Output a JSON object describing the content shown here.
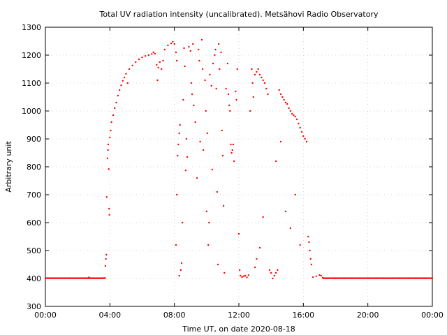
{
  "chart_data": {
    "type": "scatter",
    "title": "Total UV radiation intensity (uncalibrated). Metsähovi Radio Observatory",
    "xlabel": "Time UT, on date 2020-08-18",
    "ylabel": "Arbitrary unit",
    "xlim": [
      0,
      24
    ],
    "ylim": [
      300,
      1300
    ],
    "xticks": [
      {
        "value": 0,
        "label": "00:00"
      },
      {
        "value": 4,
        "label": "04:00"
      },
      {
        "value": 8,
        "label": "08:00"
      },
      {
        "value": 12,
        "label": "12:00"
      },
      {
        "value": 16,
        "label": "16:00"
      },
      {
        "value": 20,
        "label": "20:00"
      },
      {
        "value": 24,
        "label": "00:00"
      }
    ],
    "yticks": [
      300,
      400,
      500,
      600,
      700,
      800,
      900,
      1000,
      1100,
      1200,
      1300
    ],
    "grid": true,
    "marker_color": "#ff0000",
    "series": [
      {
        "points": [
          [
            0.0,
            401
          ],
          [
            0.5,
            401
          ],
          [
            1.0,
            401
          ],
          [
            1.5,
            401
          ],
          [
            2.0,
            401
          ],
          [
            2.5,
            401
          ],
          [
            2.7,
            404
          ],
          [
            3.0,
            401
          ],
          [
            3.5,
            401
          ],
          [
            3.7,
            402
          ],
          [
            3.72,
            445
          ],
          [
            3.75,
            470
          ],
          [
            3.78,
            485
          ],
          [
            3.8,
            692
          ],
          [
            3.85,
            830
          ],
          [
            3.88,
            860
          ],
          [
            3.9,
            880
          ],
          [
            3.93,
            792
          ],
          [
            3.95,
            650
          ],
          [
            3.97,
            628
          ],
          [
            4.0,
            905
          ],
          [
            4.05,
            930
          ],
          [
            4.1,
            960
          ],
          [
            4.2,
            985
          ],
          [
            4.3,
            1010
          ],
          [
            4.4,
            1030
          ],
          [
            4.5,
            1055
          ],
          [
            4.6,
            1075
          ],
          [
            4.7,
            1092
          ],
          [
            4.8,
            1108
          ],
          [
            4.9,
            1120
          ],
          [
            5.0,
            1133
          ],
          [
            5.1,
            1100
          ],
          [
            5.2,
            1150
          ],
          [
            5.4,
            1163
          ],
          [
            5.6,
            1175
          ],
          [
            5.8,
            1185
          ],
          [
            6.0,
            1192
          ],
          [
            6.2,
            1197
          ],
          [
            6.4,
            1200
          ],
          [
            6.6,
            1204
          ],
          [
            6.7,
            1210
          ],
          [
            6.8,
            1205
          ],
          [
            6.9,
            1165
          ],
          [
            6.95,
            1110
          ],
          [
            7.0,
            1155
          ],
          [
            7.1,
            1175
          ],
          [
            7.2,
            1150
          ],
          [
            7.3,
            1180
          ],
          [
            7.4,
            1220
          ],
          [
            7.6,
            1235
          ],
          [
            7.8,
            1242
          ],
          [
            7.9,
            1248
          ],
          [
            8.0,
            1240
          ],
          [
            8.1,
            1210
          ],
          [
            8.15,
            1180
          ],
          [
            8.1,
            520
          ],
          [
            8.15,
            700
          ],
          [
            8.2,
            840
          ],
          [
            8.25,
            880
          ],
          [
            8.3,
            920
          ],
          [
            8.35,
            950
          ],
          [
            8.3,
            410
          ],
          [
            8.4,
            430
          ],
          [
            8.45,
            455
          ],
          [
            8.5,
            600
          ],
          [
            8.55,
            1040
          ],
          [
            8.6,
            1225
          ],
          [
            8.65,
            1160
          ],
          [
            8.7,
            787
          ],
          [
            8.75,
            900
          ],
          [
            8.8,
            835
          ],
          [
            8.9,
            1230
          ],
          [
            9.0,
            1215
          ],
          [
            9.05,
            1100
          ],
          [
            9.1,
            1060
          ],
          [
            9.15,
            1240
          ],
          [
            9.2,
            1020
          ],
          [
            9.3,
            960
          ],
          [
            9.4,
            760
          ],
          [
            9.5,
            1220
          ],
          [
            9.55,
            1180
          ],
          [
            9.6,
            890
          ],
          [
            9.7,
            1255
          ],
          [
            9.75,
            1150
          ],
          [
            9.8,
            860
          ],
          [
            9.9,
            1110
          ],
          [
            9.95,
            1000
          ],
          [
            10.0,
            640
          ],
          [
            10.05,
            920
          ],
          [
            10.1,
            520
          ],
          [
            10.15,
            600
          ],
          [
            10.2,
            1130
          ],
          [
            10.3,
            1090
          ],
          [
            10.35,
            790
          ],
          [
            10.4,
            1170
          ],
          [
            10.5,
            1200
          ],
          [
            10.55,
            1220
          ],
          [
            10.6,
            1080
          ],
          [
            10.65,
            710
          ],
          [
            10.7,
            450
          ],
          [
            10.75,
            1240
          ],
          [
            10.8,
            1150
          ],
          [
            10.9,
            1210
          ],
          [
            10.95,
            930
          ],
          [
            11.0,
            840
          ],
          [
            11.05,
            660
          ],
          [
            11.1,
            420
          ],
          [
            11.2,
            1080
          ],
          [
            11.3,
            1170
          ],
          [
            11.35,
            1060
          ],
          [
            11.4,
            1020
          ],
          [
            11.45,
            1000
          ],
          [
            11.5,
            880
          ],
          [
            11.55,
            850
          ],
          [
            11.6,
            860
          ],
          [
            11.65,
            880
          ],
          [
            11.7,
            820
          ],
          [
            11.8,
            1070
          ],
          [
            11.85,
            1040
          ],
          [
            11.9,
            1150
          ],
          [
            12.0,
            560
          ],
          [
            12.05,
            430
          ],
          [
            12.1,
            410
          ],
          [
            12.2,
            405
          ],
          [
            12.3,
            408
          ],
          [
            12.4,
            410
          ],
          [
            12.5,
            404
          ],
          [
            12.6,
            412
          ],
          [
            12.7,
            1000
          ],
          [
            12.8,
            1150
          ],
          [
            12.85,
            1100
          ],
          [
            12.9,
            1050
          ],
          [
            13.0,
            1130
          ],
          [
            13.1,
            1140
          ],
          [
            13.2,
            1150
          ],
          [
            13.3,
            1130
          ],
          [
            13.4,
            1120
          ],
          [
            13.5,
            1110
          ],
          [
            13.6,
            1100
          ],
          [
            13.7,
            1080
          ],
          [
            13.8,
            1060
          ],
          [
            13.0,
            440
          ],
          [
            13.1,
            470
          ],
          [
            13.3,
            510
          ],
          [
            13.5,
            620
          ],
          [
            13.9,
            430
          ],
          [
            14.0,
            420
          ],
          [
            14.1,
            400
          ],
          [
            14.2,
            410
          ],
          [
            14.3,
            420
          ],
          [
            14.4,
            430
          ],
          [
            14.5,
            1075
          ],
          [
            14.6,
            1060
          ],
          [
            14.7,
            1050
          ],
          [
            14.8,
            1040
          ],
          [
            14.9,
            1030
          ],
          [
            15.0,
            1025
          ],
          [
            15.1,
            1010
          ],
          [
            15.2,
            1000
          ],
          [
            15.3,
            990
          ],
          [
            15.4,
            985
          ],
          [
            15.5,
            980
          ],
          [
            15.6,
            970
          ],
          [
            15.7,
            955
          ],
          [
            15.8,
            940
          ],
          [
            15.9,
            925
          ],
          [
            16.0,
            910
          ],
          [
            16.1,
            900
          ],
          [
            16.2,
            890
          ],
          [
            14.3,
            820
          ],
          [
            14.6,
            890
          ],
          [
            14.9,
            640
          ],
          [
            15.2,
            580
          ],
          [
            15.5,
            700
          ],
          [
            15.8,
            520
          ],
          [
            16.3,
            550
          ],
          [
            16.35,
            530
          ],
          [
            16.4,
            500
          ],
          [
            16.45,
            470
          ],
          [
            16.5,
            450
          ],
          [
            16.6,
            405
          ],
          [
            16.8,
            408
          ],
          [
            17.0,
            412
          ],
          [
            17.1,
            410
          ],
          [
            17.2,
            403
          ],
          [
            17.5,
            401
          ],
          [
            18.0,
            401
          ],
          [
            18.5,
            401
          ],
          [
            19.0,
            401
          ],
          [
            19.5,
            401
          ],
          [
            20.0,
            401
          ],
          [
            20.5,
            401
          ],
          [
            21.0,
            401
          ],
          [
            21.5,
            401
          ],
          [
            22.0,
            401
          ],
          [
            22.5,
            401
          ],
          [
            23.0,
            401
          ],
          [
            23.5,
            401
          ],
          [
            24.0,
            401
          ]
        ]
      }
    ]
  }
}
